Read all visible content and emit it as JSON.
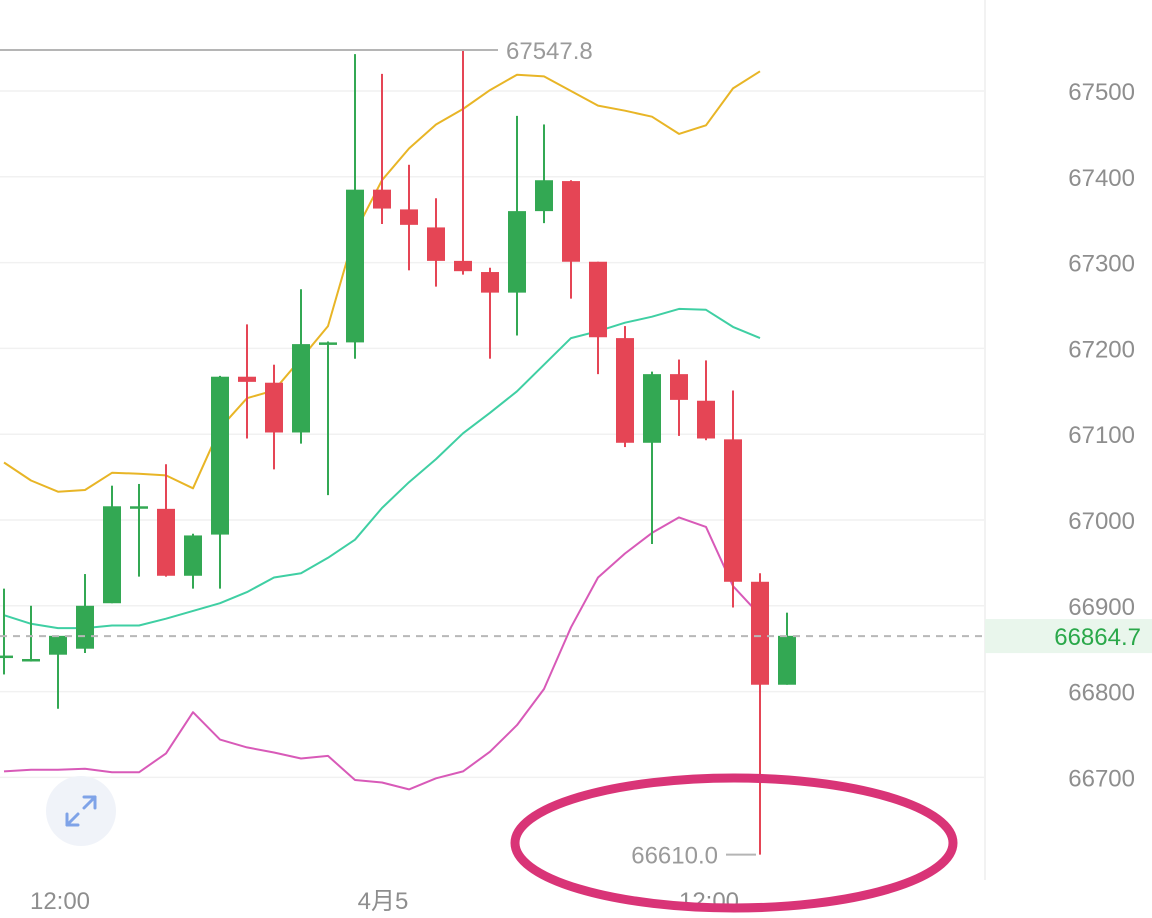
{
  "chart_data": {
    "type": "candlestick",
    "y_ticks": [
      67500,
      67400,
      67300,
      67200,
      67100,
      67000,
      66900,
      66800,
      66700
    ],
    "y_tick_labels": [
      "67500",
      "67400",
      "67300",
      "67200",
      "67100",
      "67000",
      "66900",
      "66800",
      "66700"
    ],
    "x_tick_labels": [
      "12:00",
      "4月5",
      "12:00"
    ],
    "last_price": 66864.7,
    "last_price_label": "66864.7",
    "high_marker": {
      "value": 67547.8,
      "label": "67547.8"
    },
    "low_marker": {
      "value": 66610.0,
      "label": "66610.0"
    },
    "colors": {
      "up": "#33a853",
      "down": "#e54555",
      "upper_band": "#e8b526",
      "middle_band": "#3fcfa3",
      "lower_band": "#d85ab8",
      "annotation": "#d93477"
    },
    "candles": [
      {
        "o": 66842,
        "h": 66920,
        "l": 66820,
        "c": 66842
      },
      {
        "o": 66838,
        "h": 66900,
        "l": 66835,
        "c": 66838
      },
      {
        "o": 66843,
        "h": 66865,
        "l": 66780,
        "c": 66865
      },
      {
        "o": 66850,
        "h": 66937,
        "l": 66845,
        "c": 66900
      },
      {
        "o": 66903,
        "h": 67040,
        "l": 66903,
        "c": 67016
      },
      {
        "o": 67016,
        "h": 67042,
        "l": 66934,
        "c": 67016
      },
      {
        "o": 67013,
        "h": 67065,
        "l": 66934,
        "c": 66935
      },
      {
        "o": 66935,
        "h": 66984,
        "l": 66920,
        "c": 66982
      },
      {
        "o": 66983,
        "h": 67168,
        "l": 66920,
        "c": 67167
      },
      {
        "o": 67167,
        "h": 67228,
        "l": 67095,
        "c": 67161
      },
      {
        "o": 67160,
        "h": 67181,
        "l": 67059,
        "c": 67102
      },
      {
        "o": 67102,
        "h": 67269,
        "l": 67089,
        "c": 67205
      },
      {
        "o": 67205,
        "h": 67208,
        "l": 67029,
        "c": 67207
      },
      {
        "o": 67207,
        "h": 67543,
        "l": 67188,
        "c": 67385
      },
      {
        "o": 67385,
        "h": 67520,
        "l": 67345,
        "c": 67363
      },
      {
        "o": 67362,
        "h": 67414,
        "l": 67291,
        "c": 67344
      },
      {
        "o": 67341,
        "h": 67375,
        "l": 67272,
        "c": 67302
      },
      {
        "o": 67302,
        "h": 67548,
        "l": 67286,
        "c": 67290
      },
      {
        "o": 67289,
        "h": 67294,
        "l": 67188,
        "c": 67265
      },
      {
        "o": 67265,
        "h": 67471,
        "l": 67215,
        "c": 67360
      },
      {
        "o": 67360,
        "h": 67461,
        "l": 67346,
        "c": 67396
      },
      {
        "o": 67395,
        "h": 67396,
        "l": 67258,
        "c": 67301
      },
      {
        "o": 67301,
        "h": 67301,
        "l": 67170,
        "c": 67213
      },
      {
        "o": 67212,
        "h": 67226,
        "l": 67085,
        "c": 67090
      },
      {
        "o": 67090,
        "h": 67173,
        "l": 66972,
        "c": 67170
      },
      {
        "o": 67170,
        "h": 67187,
        "l": 67098,
        "c": 67140
      },
      {
        "o": 67139,
        "h": 67186,
        "l": 67093,
        "c": 67095
      },
      {
        "o": 67094,
        "h": 67151,
        "l": 66898,
        "c": 66928
      },
      {
        "o": 66928,
        "h": 66938,
        "l": 66610,
        "c": 66808
      },
      {
        "o": 66808,
        "h": 66892,
        "l": 66808,
        "c": 66865
      }
    ],
    "upper_band": [
      67067,
      67046,
      67033,
      67035,
      67055,
      67054,
      67052,
      67037,
      67107,
      67142,
      67151,
      67188,
      67226,
      67335,
      67396,
      67433,
      67461,
      67479,
      67501,
      67519,
      67517,
      67500,
      67483,
      67477,
      67470,
      67450,
      67460,
      67503,
      67523
    ],
    "middle_band": [
      66889,
      66879,
      66874,
      66874,
      66877,
      66877,
      66885,
      66894,
      66903,
      66916,
      66933,
      66938,
      66956,
      66977,
      67014,
      67044,
      67071,
      67101,
      67125,
      67150,
      67181,
      67212,
      67220,
      67230,
      67237,
      67246,
      67245,
      67225,
      67212
    ],
    "lower_band": [
      66707,
      66709,
      66709,
      66710,
      66706,
      66706,
      66728,
      66776,
      66744,
      66735,
      66729,
      66722,
      66725,
      66697,
      66694,
      66686,
      66699,
      66707,
      66730,
      66761,
      66803,
      66875,
      66933,
      66961,
      66985,
      67003,
      66992,
      66923,
      66889
    ],
    "y_range": [
      66595,
      67595
    ],
    "grid": true
  }
}
